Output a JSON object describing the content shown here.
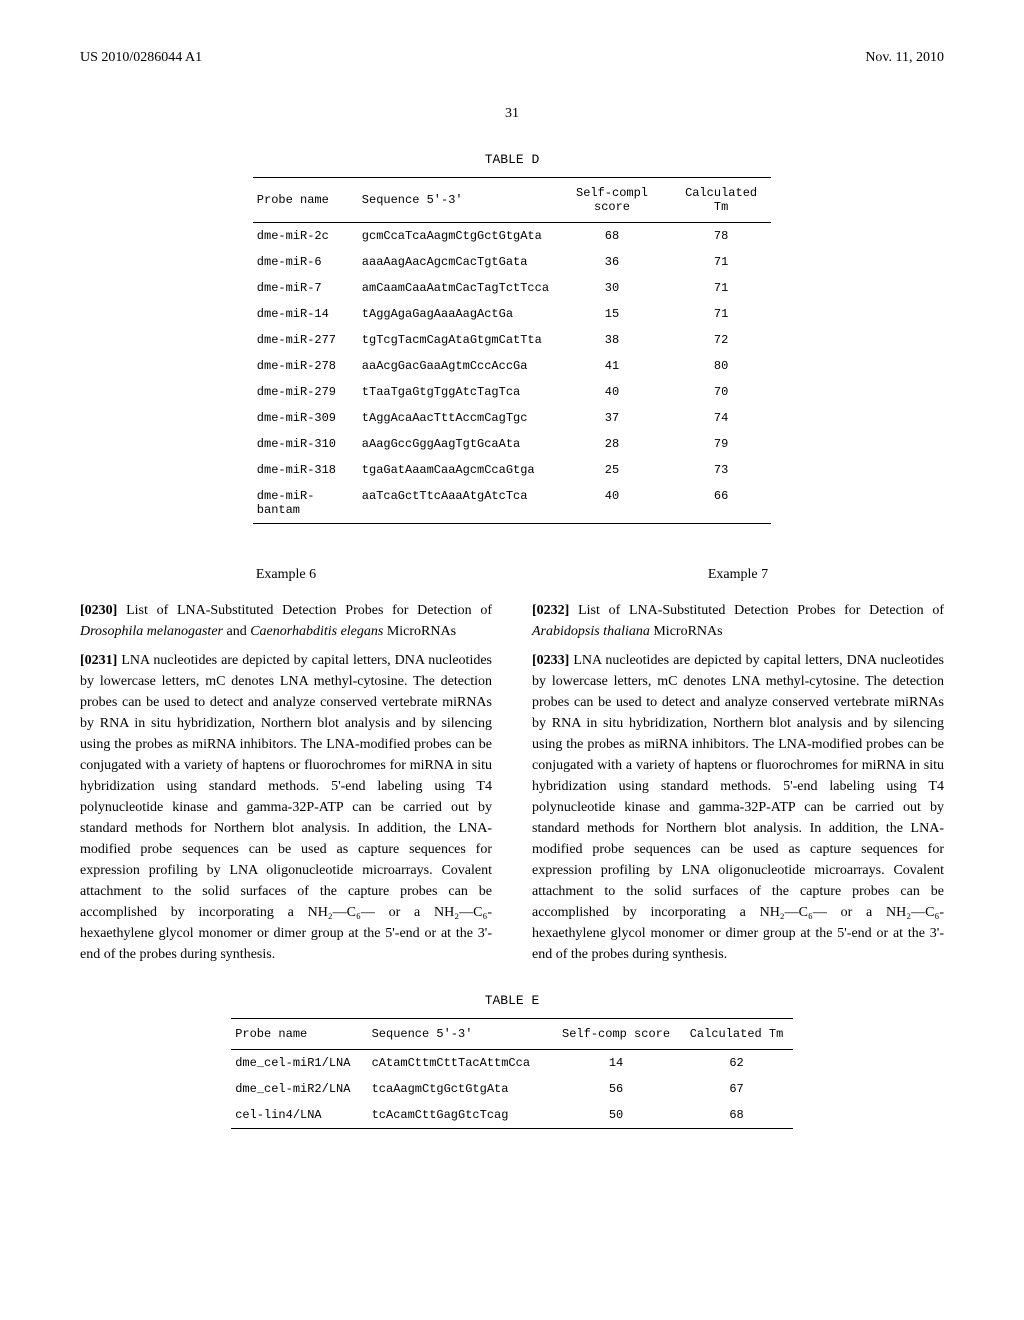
{
  "header": {
    "patent_number": "US 2010/0286044 A1",
    "date": "Nov. 11, 2010",
    "page_number": "31"
  },
  "table_d": {
    "title": "TABLE D",
    "headers": {
      "probe_name": "Probe name",
      "sequence": "Sequence 5'-3'",
      "self_compl": "Self-compl score",
      "calculated_tm": "Calculated Tm"
    },
    "rows": [
      {
        "probe_name": "dme-miR-2c",
        "sequence": "gcmCcaTcaAagmCtgGctGtgAta",
        "self_compl": "68",
        "calculated_tm": "78"
      },
      {
        "probe_name": "dme-miR-6",
        "sequence": "aaaAagAacAgcmCacTgtGata",
        "self_compl": "36",
        "calculated_tm": "71"
      },
      {
        "probe_name": "dme-miR-7",
        "sequence": "amCaamCaaAatmCacTagTctTcca",
        "self_compl": "30",
        "calculated_tm": "71"
      },
      {
        "probe_name": "dme-miR-14",
        "sequence": "tAggAgaGagAaaAagActGa",
        "self_compl": "15",
        "calculated_tm": "71"
      },
      {
        "probe_name": "dme-miR-277",
        "sequence": "tgTcgTacmCagAtaGtgmCatTta",
        "self_compl": "38",
        "calculated_tm": "72"
      },
      {
        "probe_name": "dme-miR-278",
        "sequence": "aaAcgGacGaaAgtmCccAccGa",
        "self_compl": "41",
        "calculated_tm": "80"
      },
      {
        "probe_name": "dme-miR-279",
        "sequence": "tTaaTgaGtgTggAtcTagTca",
        "self_compl": "40",
        "calculated_tm": "70"
      },
      {
        "probe_name": "dme-miR-309",
        "sequence": "tAggAcaAacTttAccmCagTgc",
        "self_compl": "37",
        "calculated_tm": "74"
      },
      {
        "probe_name": "dme-miR-310",
        "sequence": "aAagGccGggAagTgtGcaAta",
        "self_compl": "28",
        "calculated_tm": "79"
      },
      {
        "probe_name": "dme-miR-318",
        "sequence": "tgaGatAaamCaaAgcmCcaGtga",
        "self_compl": "25",
        "calculated_tm": "73"
      },
      {
        "probe_name": "dme-miR-bantam",
        "sequence": "aaTcaGctTtcAaaAtgAtcTca",
        "self_compl": "40",
        "calculated_tm": "66"
      }
    ]
  },
  "example6": {
    "title": "Example 6",
    "para_0230_num": "[0230]",
    "para_0230": "List of LNA-Substituted Detection Probes for Detection of ",
    "para_0230_italic1": "Drosophila melanogaster",
    "para_0230_and": " and ",
    "para_0230_italic2": "Caenorhabditis elegans",
    "para_0230_end": " MicroRNAs",
    "para_0231_num": "[0231]",
    "para_0231": "LNA nucleotides are depicted by capital letters, DNA nucleotides by lowercase letters, mC denotes LNA methyl-cytosine. The detection probes can be used to detect and analyze conserved vertebrate miRNAs by RNA in situ hybridization, Northern blot analysis and by silencing using the probes as miRNA inhibitors. The LNA-modified probes can be conjugated with a variety of haptens or fluorochromes for miRNA in situ hybridization using standard methods. 5'-end labeling using T4 polynucleotide kinase and gamma-32P-ATP can be carried out by standard methods for Northern blot analysis. In addition, the LNA-modified probe sequences can be used as capture sequences for expression profiling by LNA oligonucleotide microarrays. Covalent attachment to the solid surfaces of the capture probes can be accomplished by incorporating a NH₂—C₆— or a NH₂—C₆-hexaethylene glycol monomer or dimer group at the 5'-end or at the 3'-end of the probes during synthesis."
  },
  "example7": {
    "title": "Example 7",
    "para_0232_num": "[0232]",
    "para_0232": "List of LNA-Substituted Detection Probes for Detection of ",
    "para_0232_italic": "Arabidopsis thaliana",
    "para_0232_end": " MicroRNAs",
    "para_0233_num": "[0233]",
    "para_0233": "LNA nucleotides are depicted by capital letters, DNA nucleotides by lowercase letters, mC denotes LNA methyl-cytosine. The detection probes can be used to detect and analyze conserved vertebrate miRNAs by RNA in situ hybridization, Northern blot analysis and by silencing using the probes as miRNA inhibitors. The LNA-modified probes can be conjugated with a variety of haptens or fluorochromes for miRNA in situ hybridization using standard methods. 5'-end labeling using T4 polynucleotide kinase and gamma-32P-ATP can be carried out by standard methods for Northern blot analysis. In addition, the LNA-modified probe sequences can be used as capture sequences for expression profiling by LNA oligonucleotide microarrays. Covalent attachment to the solid surfaces of the capture probes can be accomplished by incorporating a NH₂—C₆— or a NH₂—C₆-hexaethylene glycol monomer or dimer group at the 5'-end or at the 3'-end of the probes during synthesis."
  },
  "table_e": {
    "title": "TABLE E",
    "headers": {
      "probe_name": "Probe name",
      "sequence": "Sequence 5'-3'",
      "self_comp": "Self-comp score",
      "calculated_tm": "Calculated Tm"
    },
    "rows": [
      {
        "probe_name": "dme_cel-miR1/LNA",
        "sequence": "cAtamCttmCttTacAttmCca",
        "self_comp": "14",
        "calculated_tm": "62"
      },
      {
        "probe_name": "dme_cel-miR2/LNA",
        "sequence": "tcaAagmCtgGctGtgAta",
        "self_comp": "56",
        "calculated_tm": "67"
      },
      {
        "probe_name": "cel-lin4/LNA",
        "sequence": "tcAcamCttGagGtcTcag",
        "self_comp": "50",
        "calculated_tm": "68"
      }
    ]
  }
}
